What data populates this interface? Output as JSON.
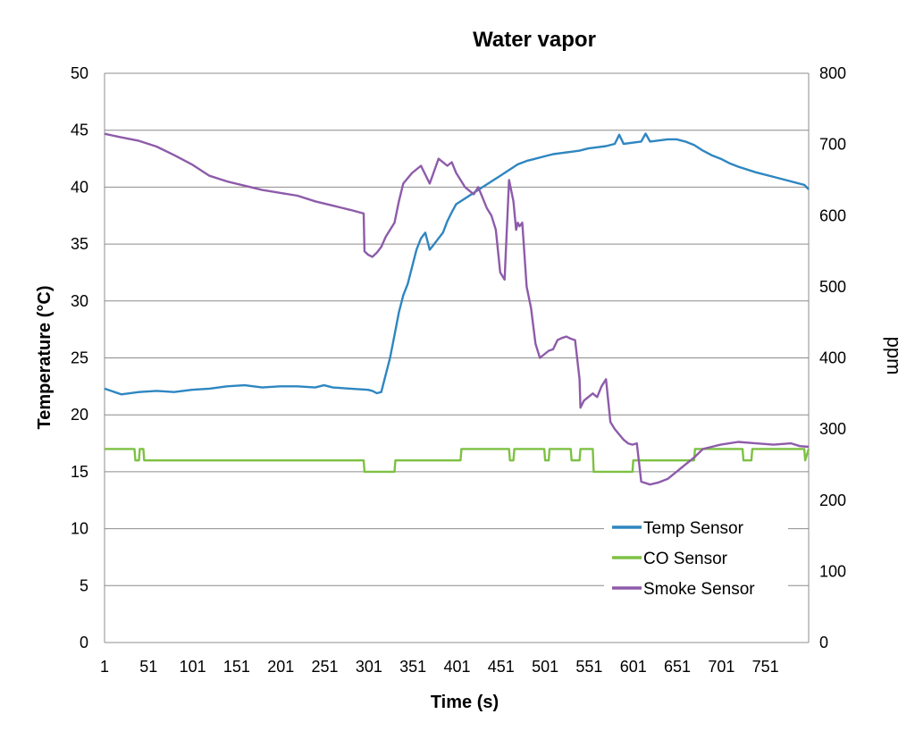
{
  "chart_data": {
    "type": "line",
    "title": "Water vapor",
    "xlabel": "Time (s)",
    "ylabel": "Temperature (°C)",
    "y2label": "ppm",
    "xlim": [
      1,
      800
    ],
    "ylim": [
      0,
      50
    ],
    "y2lim": [
      0,
      800
    ],
    "grid": true,
    "legend_position": "bottom-right",
    "x_ticks": [
      "1",
      "51",
      "101",
      "151",
      "201",
      "251",
      "301",
      "351",
      "401",
      "451",
      "501",
      "551",
      "601",
      "651",
      "701",
      "751"
    ],
    "y_ticks": [
      "0",
      "5",
      "10",
      "15",
      "20",
      "25",
      "30",
      "35",
      "40",
      "45",
      "50"
    ],
    "y2_ticks": [
      "0",
      "100",
      "200",
      "300",
      "400",
      "500",
      "600",
      "700",
      "800"
    ],
    "colors": {
      "temp": "#2E86C1",
      "co": "#7DC142",
      "smoke": "#8E5BAA",
      "grid": "#8C8C8C",
      "axis": "#8C8C8C"
    },
    "series": [
      {
        "name": "Temp Sensor",
        "axis": "left",
        "color": "#2E86C1",
        "x": [
          1,
          20,
          40,
          60,
          80,
          100,
          120,
          140,
          160,
          180,
          200,
          220,
          240,
          250,
          260,
          280,
          300,
          305,
          310,
          315,
          320,
          325,
          330,
          335,
          340,
          345,
          350,
          355,
          360,
          365,
          370,
          375,
          380,
          385,
          390,
          395,
          400,
          410,
          420,
          430,
          440,
          450,
          460,
          470,
          480,
          490,
          500,
          510,
          520,
          530,
          540,
          550,
          560,
          570,
          580,
          585,
          590,
          600,
          610,
          615,
          620,
          630,
          640,
          650,
          660,
          670,
          680,
          690,
          700,
          710,
          720,
          740,
          760,
          780,
          795,
          800
        ],
        "values": [
          22.3,
          21.8,
          22.0,
          22.1,
          22.0,
          22.2,
          22.3,
          22.5,
          22.6,
          22.4,
          22.5,
          22.5,
          22.4,
          22.6,
          22.4,
          22.3,
          22.2,
          22.1,
          21.9,
          22.0,
          23.5,
          25.0,
          27.0,
          29.0,
          30.5,
          31.5,
          33.0,
          34.5,
          35.5,
          36.0,
          34.5,
          35.0,
          35.5,
          36.0,
          37.0,
          37.8,
          38.5,
          39.0,
          39.5,
          40.0,
          40.5,
          41.0,
          41.5,
          42.0,
          42.3,
          42.5,
          42.7,
          42.9,
          43.0,
          43.1,
          43.2,
          43.4,
          43.5,
          43.6,
          43.8,
          44.6,
          43.8,
          43.9,
          44.0,
          44.7,
          44.0,
          44.1,
          44.2,
          44.2,
          44.0,
          43.7,
          43.2,
          42.8,
          42.5,
          42.1,
          41.8,
          41.3,
          40.9,
          40.5,
          40.2,
          39.8
        ]
      },
      {
        "name": "CO Sensor",
        "axis": "left",
        "color": "#7DC142",
        "x": [
          1,
          35,
          36,
          40,
          41,
          45,
          46,
          50,
          51,
          295,
          296,
          330,
          331,
          335,
          336,
          405,
          406,
          410,
          411,
          460,
          461,
          465,
          466,
          500,
          501,
          505,
          506,
          530,
          531,
          540,
          541,
          555,
          556,
          600,
          601,
          610,
          611,
          670,
          671,
          680,
          681,
          725,
          726,
          735,
          736,
          795,
          796,
          800
        ],
        "values": [
          17,
          17,
          16,
          16,
          17,
          17,
          16,
          16,
          16,
          16,
          15,
          15,
          16,
          16,
          16,
          16,
          17,
          17,
          17,
          17,
          16,
          16,
          17,
          17,
          16,
          16,
          17,
          17,
          16,
          16,
          17,
          17,
          15,
          15,
          16,
          16,
          16,
          16,
          17,
          17,
          17,
          17,
          16,
          16,
          17,
          17,
          16,
          17
        ]
      },
      {
        "name": "Smoke Sensor",
        "axis": "right",
        "color": "#8E5BAA",
        "x": [
          1,
          20,
          40,
          60,
          80,
          100,
          120,
          140,
          160,
          180,
          200,
          220,
          240,
          260,
          280,
          295,
          296,
          300,
          305,
          310,
          315,
          320,
          330,
          335,
          340,
          350,
          360,
          370,
          380,
          390,
          395,
          400,
          405,
          410,
          415,
          420,
          425,
          430,
          435,
          440,
          445,
          450,
          455,
          460,
          465,
          468,
          470,
          472,
          475,
          480,
          485,
          490,
          495,
          500,
          505,
          510,
          515,
          520,
          525,
          530,
          535,
          540,
          541,
          545,
          550,
          555,
          560,
          565,
          570,
          575,
          580,
          590,
          595,
          600,
          605,
          610,
          620,
          630,
          640,
          650,
          660,
          670,
          680,
          690,
          700,
          710,
          720,
          740,
          760,
          780,
          790,
          800
        ],
        "values": [
          715,
          710,
          705,
          697,
          685,
          672,
          656,
          648,
          642,
          636,
          632,
          628,
          620,
          614,
          608,
          603,
          550,
          545,
          542,
          548,
          556,
          570,
          590,
          620,
          645,
          660,
          670,
          645,
          680,
          670,
          675,
          660,
          650,
          640,
          635,
          630,
          640,
          625,
          610,
          600,
          580,
          520,
          510,
          650,
          620,
          580,
          590,
          585,
          590,
          500,
          470,
          420,
          400,
          405,
          410,
          412,
          425,
          428,
          430,
          427,
          425,
          370,
          330,
          340,
          345,
          350,
          345,
          360,
          370,
          310,
          300,
          285,
          280,
          278,
          280,
          226,
          222,
          225,
          230,
          240,
          250,
          260,
          272,
          275,
          278,
          280,
          282,
          280,
          278,
          280,
          276,
          275
        ]
      }
    ]
  },
  "legend": {
    "items": [
      "Temp Sensor",
      "CO Sensor",
      "Smoke Sensor"
    ]
  }
}
